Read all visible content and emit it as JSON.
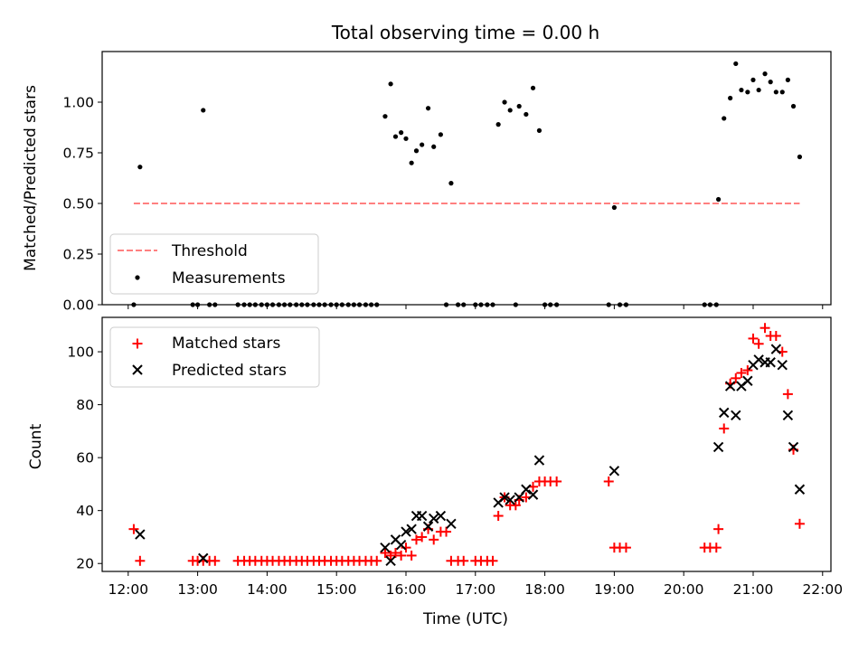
{
  "chart_data": [
    {
      "type": "scatter",
      "title": "Total observing time = 0.00 h",
      "xlabel": "",
      "ylabel": "Matched/Predicted stars",
      "xlim": [
        11.625,
        22.12
      ],
      "ylim": [
        0.0,
        1.25
      ],
      "yticks": [
        0.0,
        0.25,
        0.5,
        0.75,
        1.0
      ],
      "ytick_labels": [
        "0.00",
        "0.25",
        "0.50",
        "0.75",
        "1.00"
      ],
      "xticks": [
        12,
        13,
        14,
        15,
        16,
        17,
        18,
        19,
        20,
        21,
        22
      ],
      "xtick_labels_shown": false,
      "legend_position": "lower-left",
      "threshold": {
        "name": "Threshold",
        "value": 0.5,
        "x": [
          12.08,
          21.67
        ],
        "color": "#ff8080",
        "style": "dashed"
      },
      "series": [
        {
          "name": "Measurements",
          "color": "#000000",
          "marker": "dot",
          "points": [
            [
              12.08,
              0.0
            ],
            [
              12.17,
              0.68
            ],
            [
              12.93,
              0.0
            ],
            [
              13.0,
              0.0
            ],
            [
              13.08,
              0.96
            ],
            [
              13.17,
              0.0
            ],
            [
              13.25,
              0.0
            ],
            [
              13.58,
              0.0
            ],
            [
              13.67,
              0.0
            ],
            [
              13.75,
              0.0
            ],
            [
              13.83,
              0.0
            ],
            [
              13.92,
              0.0
            ],
            [
              14.0,
              0.0
            ],
            [
              14.08,
              0.0
            ],
            [
              14.17,
              0.0
            ],
            [
              14.25,
              0.0
            ],
            [
              14.33,
              0.0
            ],
            [
              14.42,
              0.0
            ],
            [
              14.5,
              0.0
            ],
            [
              14.58,
              0.0
            ],
            [
              14.67,
              0.0
            ],
            [
              14.75,
              0.0
            ],
            [
              14.83,
              0.0
            ],
            [
              14.92,
              0.0
            ],
            [
              15.0,
              0.0
            ],
            [
              15.08,
              0.0
            ],
            [
              15.17,
              0.0
            ],
            [
              15.25,
              0.0
            ],
            [
              15.33,
              0.0
            ],
            [
              15.42,
              0.0
            ],
            [
              15.5,
              0.0
            ],
            [
              15.58,
              0.0
            ],
            [
              15.7,
              0.93
            ],
            [
              15.78,
              1.09
            ],
            [
              15.85,
              0.83
            ],
            [
              15.93,
              0.85
            ],
            [
              16.0,
              0.82
            ],
            [
              16.08,
              0.7
            ],
            [
              16.15,
              0.76
            ],
            [
              16.23,
              0.79
            ],
            [
              16.32,
              0.97
            ],
            [
              16.4,
              0.78
            ],
            [
              16.5,
              0.84
            ],
            [
              16.58,
              0.0
            ],
            [
              16.65,
              0.6
            ],
            [
              16.75,
              0.0
            ],
            [
              16.83,
              0.0
            ],
            [
              17.0,
              0.0
            ],
            [
              17.08,
              0.0
            ],
            [
              17.17,
              0.0
            ],
            [
              17.25,
              0.0
            ],
            [
              17.33,
              0.89
            ],
            [
              17.42,
              1.0
            ],
            [
              17.5,
              0.96
            ],
            [
              17.58,
              0.0
            ],
            [
              17.63,
              0.98
            ],
            [
              17.73,
              0.94
            ],
            [
              17.83,
              1.07
            ],
            [
              17.92,
              0.86
            ],
            [
              18.0,
              0.0
            ],
            [
              18.08,
              0.0
            ],
            [
              18.17,
              0.0
            ],
            [
              18.92,
              0.0
            ],
            [
              19.0,
              0.48
            ],
            [
              19.08,
              0.0
            ],
            [
              19.17,
              0.0
            ],
            [
              20.3,
              0.0
            ],
            [
              20.38,
              0.0
            ],
            [
              20.47,
              0.0
            ],
            [
              20.5,
              0.52
            ],
            [
              20.58,
              0.92
            ],
            [
              20.67,
              1.02
            ],
            [
              20.75,
              1.19
            ],
            [
              20.83,
              1.06
            ],
            [
              20.92,
              1.05
            ],
            [
              21.0,
              1.11
            ],
            [
              21.08,
              1.06
            ],
            [
              21.17,
              1.14
            ],
            [
              21.25,
              1.1
            ],
            [
              21.33,
              1.05
            ],
            [
              21.42,
              1.05
            ],
            [
              21.5,
              1.11
            ],
            [
              21.58,
              0.98
            ],
            [
              21.67,
              0.73
            ]
          ]
        }
      ]
    },
    {
      "type": "scatter",
      "title": "",
      "xlabel": "Time (UTC)",
      "ylabel": "Count",
      "xlim": [
        11.625,
        22.12
      ],
      "ylim": [
        17,
        113
      ],
      "yticks": [
        20,
        40,
        60,
        80,
        100
      ],
      "ytick_labels": [
        "20",
        "40",
        "60",
        "80",
        "100"
      ],
      "xticks": [
        12,
        13,
        14,
        15,
        16,
        17,
        18,
        19,
        20,
        21,
        22
      ],
      "xtick_labels": [
        "12:00",
        "13:00",
        "14:00",
        "15:00",
        "16:00",
        "17:00",
        "18:00",
        "19:00",
        "20:00",
        "21:00",
        "22:00"
      ],
      "legend_position": "upper-left",
      "series": [
        {
          "name": "Matched stars",
          "color": "#ff0000",
          "marker": "plus",
          "points": [
            [
              12.08,
              33
            ],
            [
              12.17,
              21
            ],
            [
              12.93,
              21
            ],
            [
              13.0,
              21
            ],
            [
              13.08,
              21
            ],
            [
              13.17,
              21
            ],
            [
              13.25,
              21
            ],
            [
              13.58,
              21
            ],
            [
              13.67,
              21
            ],
            [
              13.75,
              21
            ],
            [
              13.83,
              21
            ],
            [
              13.92,
              21
            ],
            [
              14.0,
              21
            ],
            [
              14.08,
              21
            ],
            [
              14.17,
              21
            ],
            [
              14.25,
              21
            ],
            [
              14.33,
              21
            ],
            [
              14.42,
              21
            ],
            [
              14.5,
              21
            ],
            [
              14.58,
              21
            ],
            [
              14.67,
              21
            ],
            [
              14.75,
              21
            ],
            [
              14.83,
              21
            ],
            [
              14.92,
              21
            ],
            [
              15.0,
              21
            ],
            [
              15.08,
              21
            ],
            [
              15.17,
              21
            ],
            [
              15.25,
              21
            ],
            [
              15.33,
              21
            ],
            [
              15.42,
              21
            ],
            [
              15.5,
              21
            ],
            [
              15.58,
              21
            ],
            [
              15.7,
              24
            ],
            [
              15.78,
              23
            ],
            [
              15.85,
              24
            ],
            [
              15.93,
              23
            ],
            [
              16.0,
              26
            ],
            [
              16.08,
              23
            ],
            [
              16.15,
              29
            ],
            [
              16.23,
              30
            ],
            [
              16.32,
              33
            ],
            [
              16.4,
              29
            ],
            [
              16.5,
              32
            ],
            [
              16.58,
              32
            ],
            [
              16.65,
              21
            ],
            [
              16.75,
              21
            ],
            [
              16.83,
              21
            ],
            [
              17.0,
              21
            ],
            [
              17.08,
              21
            ],
            [
              17.17,
              21
            ],
            [
              17.25,
              21
            ],
            [
              17.33,
              38
            ],
            [
              17.42,
              45
            ],
            [
              17.5,
              42
            ],
            [
              17.58,
              42
            ],
            [
              17.63,
              44
            ],
            [
              17.73,
              45
            ],
            [
              17.83,
              49
            ],
            [
              17.92,
              51
            ],
            [
              18.0,
              51
            ],
            [
              18.08,
              51
            ],
            [
              18.17,
              51
            ],
            [
              18.92,
              51
            ],
            [
              19.0,
              26
            ],
            [
              19.08,
              26
            ],
            [
              19.17,
              26
            ],
            [
              20.3,
              26
            ],
            [
              20.38,
              26
            ],
            [
              20.47,
              26
            ],
            [
              20.5,
              33
            ],
            [
              20.58,
              71
            ],
            [
              20.67,
              88
            ],
            [
              20.75,
              90
            ],
            [
              20.83,
              92
            ],
            [
              20.92,
              93
            ],
            [
              21.0,
              105
            ],
            [
              21.08,
              103
            ],
            [
              21.17,
              109
            ],
            [
              21.25,
              106
            ],
            [
              21.33,
              106
            ],
            [
              21.42,
              100
            ],
            [
              21.5,
              84
            ],
            [
              21.58,
              63
            ],
            [
              21.67,
              35
            ]
          ]
        },
        {
          "name": "Predicted stars",
          "color": "#000000",
          "marker": "x",
          "points": [
            [
              12.17,
              31
            ],
            [
              13.08,
              22
            ],
            [
              15.7,
              26
            ],
            [
              15.78,
              21
            ],
            [
              15.85,
              29
            ],
            [
              15.93,
              27
            ],
            [
              16.0,
              32
            ],
            [
              16.08,
              33
            ],
            [
              16.15,
              38
            ],
            [
              16.23,
              38
            ],
            [
              16.32,
              34
            ],
            [
              16.4,
              37
            ],
            [
              16.5,
              38
            ],
            [
              16.65,
              35
            ],
            [
              17.33,
              43
            ],
            [
              17.42,
              45
            ],
            [
              17.5,
              44
            ],
            [
              17.63,
              45
            ],
            [
              17.73,
              48
            ],
            [
              17.83,
              46
            ],
            [
              17.92,
              59
            ],
            [
              19.0,
              55
            ],
            [
              20.5,
              64
            ],
            [
              20.58,
              77
            ],
            [
              20.67,
              87
            ],
            [
              20.75,
              76
            ],
            [
              20.83,
              87
            ],
            [
              20.92,
              89
            ],
            [
              21.0,
              95
            ],
            [
              21.08,
              97
            ],
            [
              21.17,
              96
            ],
            [
              21.25,
              96
            ],
            [
              21.33,
              101
            ],
            [
              21.42,
              95
            ],
            [
              21.5,
              76
            ],
            [
              21.58,
              64
            ],
            [
              21.67,
              48
            ]
          ]
        }
      ]
    }
  ]
}
